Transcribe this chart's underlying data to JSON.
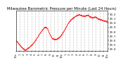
{
  "title": "Milwaukee Barometric Pressure per Minute (Last 24 Hours)",
  "title_fontsize": 3.8,
  "line_color": "#ff0000",
  "bg_color": "#ffffff",
  "plot_bg_color": "#ffffff",
  "grid_color": "#bbbbbb",
  "ylim": [
    29.35,
    30.28
  ],
  "yticks": [
    29.4,
    29.5,
    29.6,
    29.7,
    29.8,
    29.9,
    30.0,
    30.1,
    30.2
  ],
  "xlabel_fontsize": 2.5,
  "ylabel_fontsize": 2.8,
  "ctrl_x": [
    0,
    50,
    100,
    140,
    200,
    260,
    310,
    360,
    400,
    430,
    460,
    490,
    530,
    570,
    620,
    660,
    710,
    760,
    820,
    880,
    940,
    990,
    1040,
    1090,
    1130,
    1170,
    1210,
    1250,
    1290,
    1330,
    1370,
    1420,
    1439
  ],
  "ctrl_y": [
    29.6,
    29.5,
    29.42,
    29.38,
    29.44,
    29.52,
    29.62,
    29.74,
    29.82,
    29.88,
    29.91,
    29.88,
    29.74,
    29.64,
    29.62,
    29.65,
    29.72,
    29.84,
    30.0,
    30.1,
    30.16,
    30.19,
    30.17,
    30.16,
    30.18,
    30.14,
    30.12,
    30.14,
    30.1,
    30.08,
    30.06,
    30.04,
    30.02
  ],
  "x_tick_positions": [
    0,
    60,
    120,
    180,
    240,
    300,
    360,
    420,
    480,
    540,
    600,
    660,
    720,
    780,
    840,
    900,
    960,
    1020,
    1080,
    1140,
    1200,
    1260,
    1320,
    1380,
    1440
  ],
  "x_tick_labels": [
    "12a",
    "1",
    "2",
    "3",
    "4",
    "5",
    "6",
    "7",
    "8",
    "9",
    "10",
    "11",
    "12p",
    "1",
    "2",
    "3",
    "4",
    "5",
    "6",
    "7",
    "8",
    "9",
    "10",
    "11",
    "12a"
  ]
}
